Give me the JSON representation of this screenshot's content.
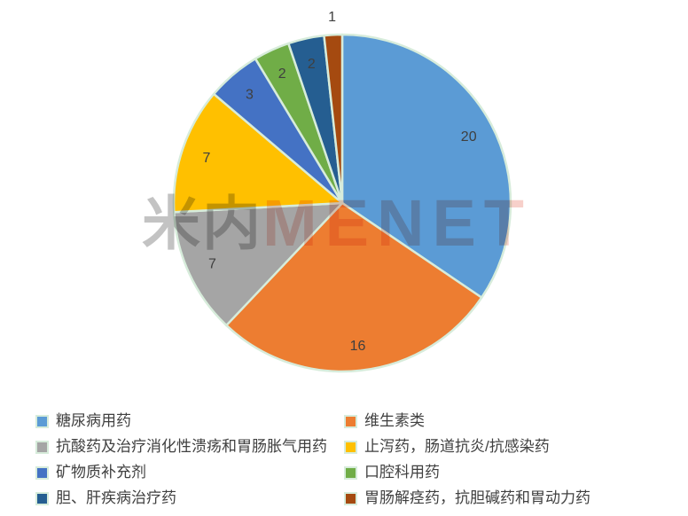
{
  "watermark": {
    "cn": "米内",
    "en": "MENET"
  },
  "chart_data": {
    "type": "pie",
    "title": "",
    "start_angle_deg": 0,
    "direction": "clockwise",
    "total": 58,
    "outline_color": "#d7ecdb",
    "label_color": "#3f3f3f",
    "legend_position": "bottom",
    "legend_columns": 2,
    "slices": [
      {
        "label": "糖尿病用药",
        "value": 20,
        "color": "#5b9bd5"
      },
      {
        "label": "维生素类",
        "value": 16,
        "color": "#ed7d31"
      },
      {
        "label": "抗酸药及治疗消化性溃疡和胃肠胀气用药",
        "value": 7,
        "color": "#a5a5a5"
      },
      {
        "label": "止泻药，肠道抗炎/抗感染药",
        "value": 7,
        "color": "#ffc000"
      },
      {
        "label": "矿物质补充剂",
        "value": 3,
        "color": "#4472c4"
      },
      {
        "label": "口腔科用药",
        "value": 2,
        "color": "#70ad47"
      },
      {
        "label": "胆、肝疾病治疗药",
        "value": 2,
        "color": "#255e91"
      },
      {
        "label": "胃肠解痉药，抗胆碱药和胃动力药",
        "value": 1,
        "color": "#a54a10"
      }
    ]
  }
}
